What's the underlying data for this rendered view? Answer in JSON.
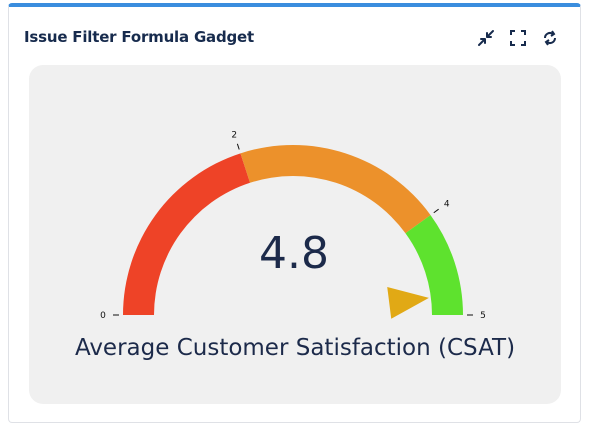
{
  "gadget": {
    "title": "Issue Filter Formula Gadget",
    "actions": [
      {
        "name": "minimize",
        "icon": "collapse-arrows-icon"
      },
      {
        "name": "fullscreen",
        "icon": "expand-corners-icon"
      },
      {
        "name": "refresh",
        "icon": "refresh-icon"
      }
    ]
  },
  "gauge": {
    "value": "4.8",
    "caption": "Average Customer Satisfaction (CSAT)",
    "min": 0,
    "max": 5,
    "ticks": [
      "0",
      "2",
      "4",
      "5"
    ],
    "bands": [
      {
        "from": 0,
        "to": 2,
        "color": "#ee4327"
      },
      {
        "from": 2,
        "to": 4,
        "color": "#ec912b"
      },
      {
        "from": 4,
        "to": 5,
        "color": "#5ee22e"
      }
    ],
    "pointer_color": "#e1a915"
  }
}
